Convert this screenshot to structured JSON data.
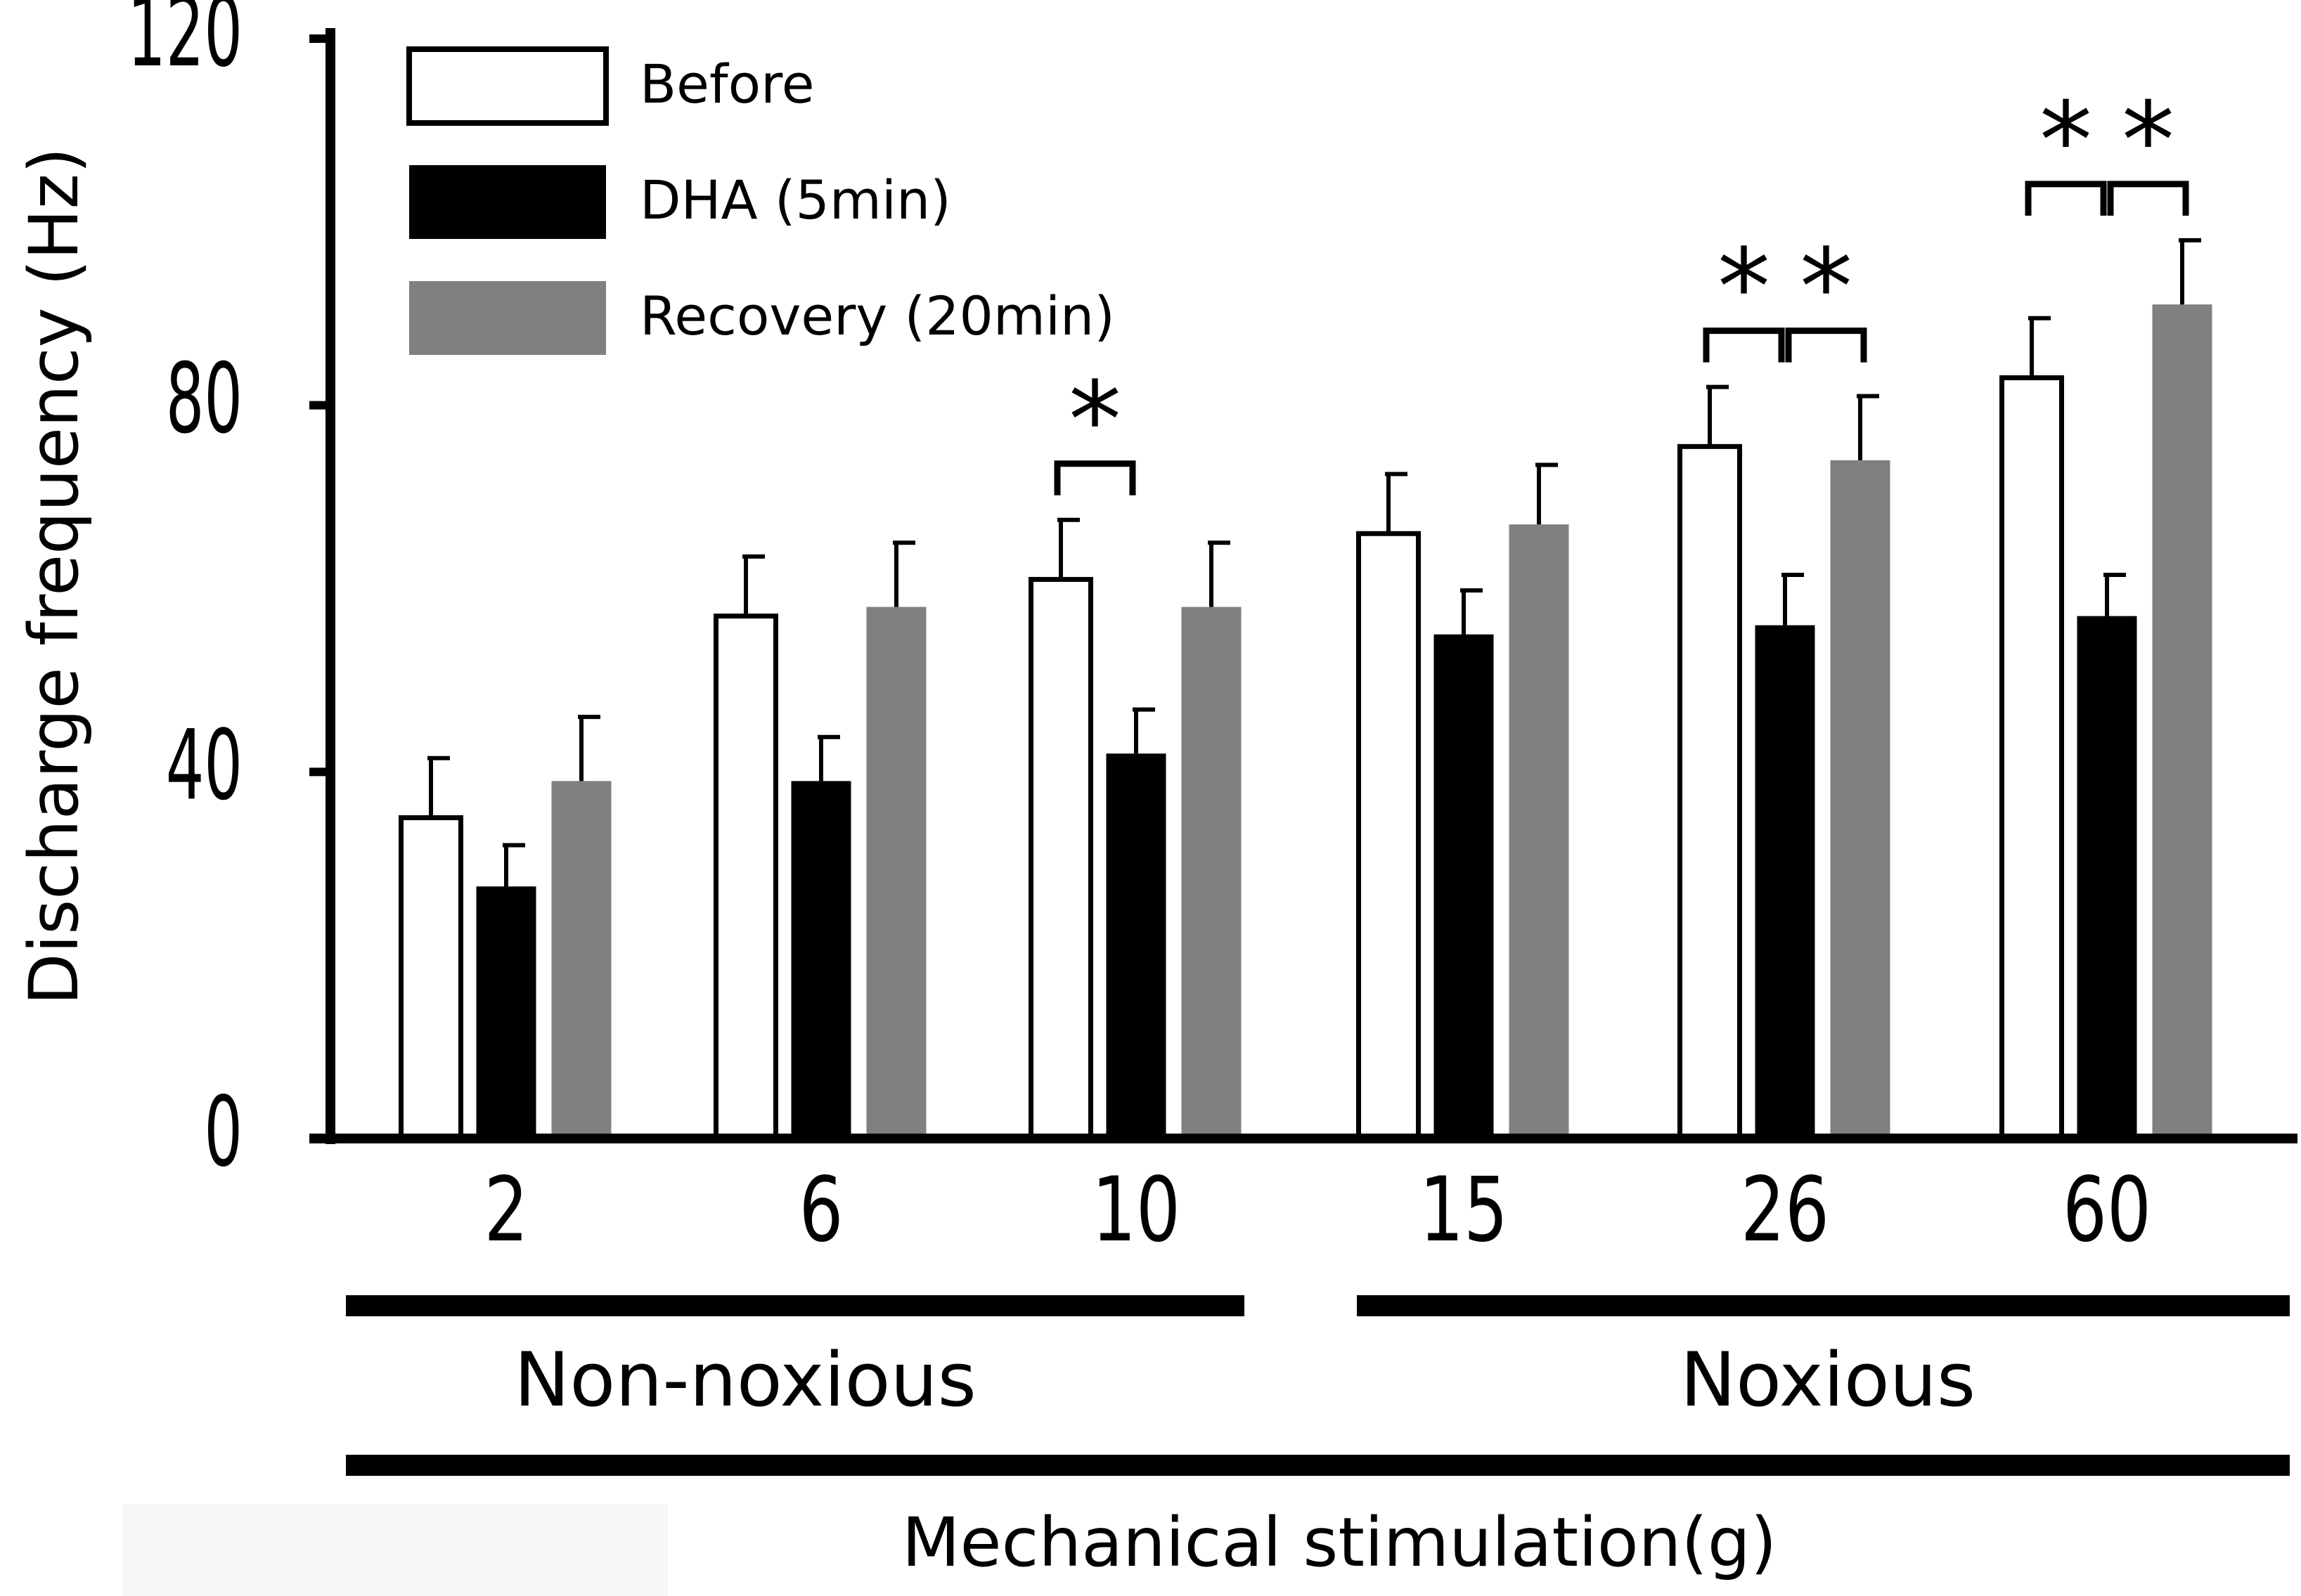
{
  "chart_data": {
    "type": "bar",
    "title": "",
    "xlabel": "Mechanical stimulation(g)",
    "ylabel": "Discharge frequency (Hz)",
    "ylim": [
      0,
      120
    ],
    "yticks": [
      "0",
      "40",
      "80",
      "120"
    ],
    "categories": [
      "2",
      "6",
      "10",
      "15",
      "26",
      "60"
    ],
    "series": [
      {
        "name": "Before",
        "color": "#ffffff",
        "values": [
          35,
          57,
          61,
          66,
          75.5,
          83
        ],
        "errors": [
          6.5,
          6.5,
          6.5,
          6.5,
          6.5,
          6.5
        ]
      },
      {
        "name": "DHA (5min)",
        "color": "#000000",
        "values": [
          27.5,
          39,
          42,
          55,
          56,
          57
        ],
        "errors": [
          4.5,
          4.8,
          4.8,
          4.8,
          5.5,
          4.5
        ]
      },
      {
        "name": "Recovery (20min)",
        "color": "#808080",
        "values": [
          39,
          58,
          58,
          67,
          74,
          91
        ],
        "errors": [
          7,
          7,
          7,
          6.5,
          7,
          7
        ]
      }
    ],
    "groups": [
      {
        "label": "Non-noxious",
        "categories": [
          "2",
          "6",
          "10"
        ]
      },
      {
        "label": "Noxious",
        "categories": [
          "15",
          "26",
          "60"
        ]
      }
    ],
    "significance": [
      {
        "category": "10",
        "from": "Before",
        "to": "DHA (5min)",
        "symbol": "*"
      },
      {
        "category": "26",
        "from": "Before",
        "to": "DHA (5min)",
        "symbol": "*"
      },
      {
        "category": "26",
        "from": "DHA (5min)",
        "to": "Recovery (20min)",
        "symbol": "*"
      },
      {
        "category": "60",
        "from": "Before",
        "to": "DHA (5min)",
        "symbol": "*"
      },
      {
        "category": "60",
        "from": "DHA (5min)",
        "to": "Recovery (20min)",
        "symbol": "*"
      }
    ],
    "legend_position": "top-left"
  }
}
